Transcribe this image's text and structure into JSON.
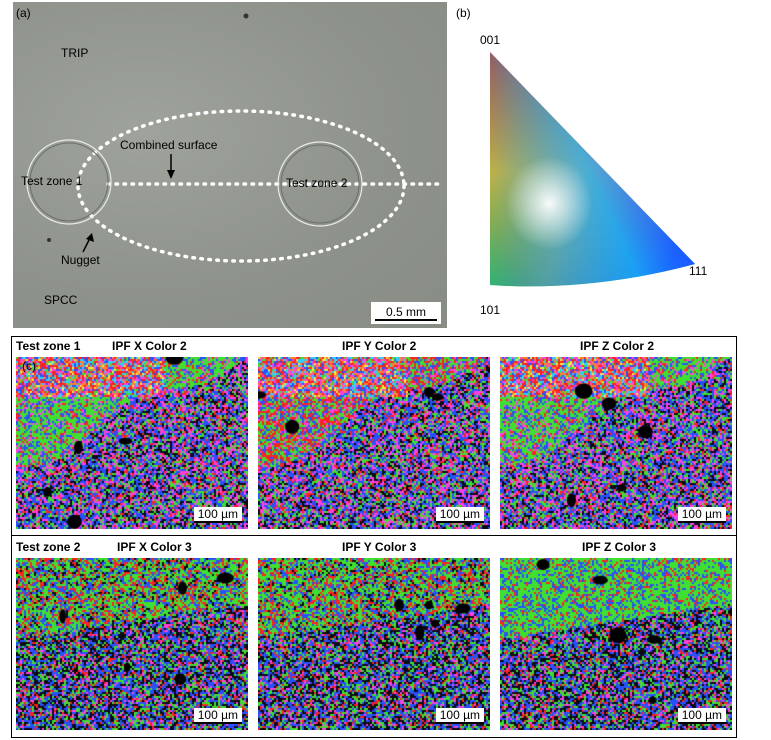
{
  "panel_a": {
    "label": "(a)",
    "trip": "TRIP",
    "spcc": "SPCC",
    "combined_surface": "Combined surface",
    "test_zone_1": "Test zone 1",
    "test_zone_2": "Test zone 2",
    "nugget": "Nugget",
    "scale": "0.5 mm"
  },
  "panel_b": {
    "label": "(b)",
    "corner_001": "001",
    "corner_101": "101",
    "corner_111": "111"
  },
  "panel_c": {
    "label": "(c)",
    "row1": {
      "zone": "Test zone 1",
      "titles": [
        "IPF X Color 2",
        "IPF Y Color 2",
        "IPF Z Color 2"
      ],
      "scale": "100 µm"
    },
    "row2": {
      "zone": "Test zone 2",
      "titles": [
        "IPF X Color 3",
        "IPF Y Color 3",
        "IPF Z Color 3"
      ],
      "scale": "100 µm"
    }
  },
  "colors": {
    "red": "#ff2020",
    "green": "#40e030",
    "blue": "#2850ff",
    "magenta": "#ff40e0",
    "cyan": "#30d0ff",
    "yellow": "#f0f040",
    "orange": "#ff8030"
  }
}
